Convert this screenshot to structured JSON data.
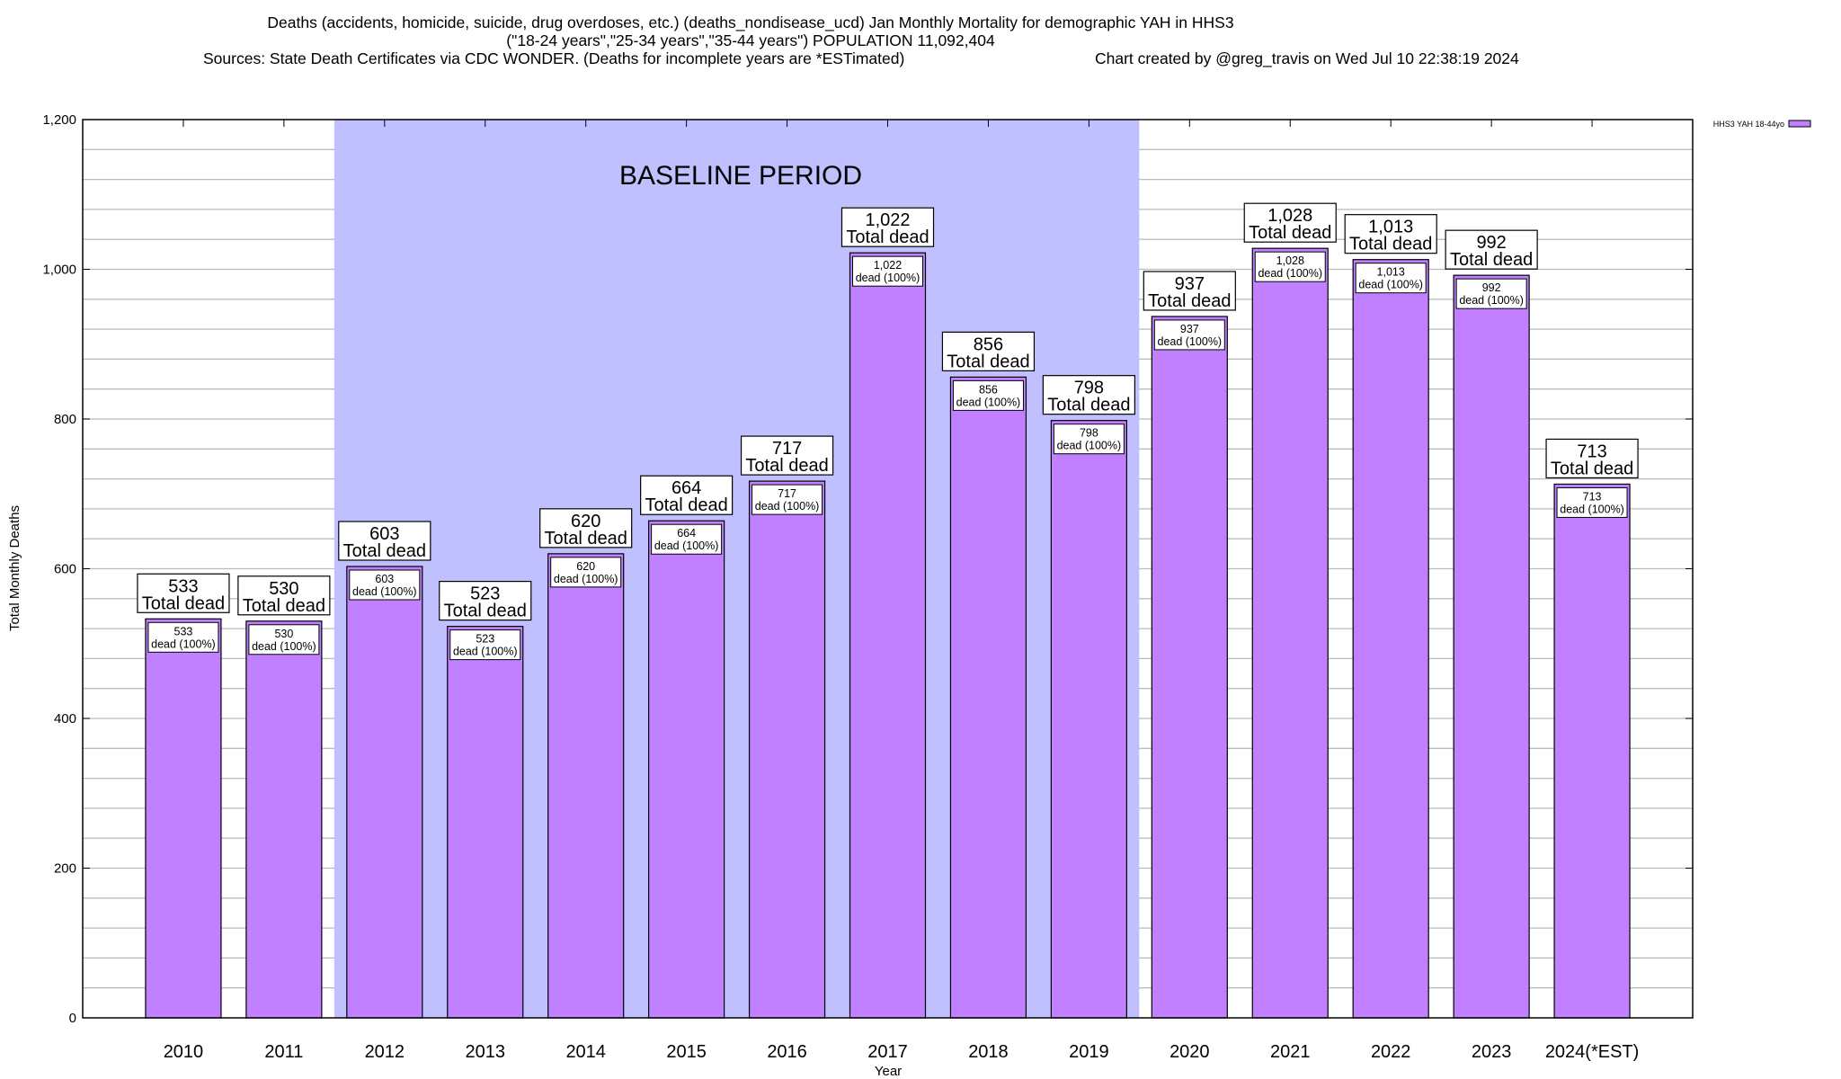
{
  "title": {
    "line1": "Deaths (accidents, homicide, suicide, drug overdoses, etc.) (deaths_nondisease_ucd) Jan Monthly Mortality for demographic YAH in HHS3",
    "line2": "(\"18-24 years\",\"25-34 years\",\"35-44 years\") POPULATION 11,092,404",
    "sources": "Sources: State Death Certificates via CDC WONDER. (Deaths for incomplete years are *ESTimated)",
    "credit": "Chart created by @greg_travis on Wed Jul 10 22:38:19 2024"
  },
  "chart_data": {
    "type": "bar",
    "xlabel": "Year",
    "ylabel": "Total Monthly Deaths",
    "ylim": [
      0,
      1200
    ],
    "yticks": [
      0,
      200,
      400,
      600,
      800,
      1000,
      1200
    ],
    "ytick_labels": [
      "0",
      "200",
      "400",
      "600",
      "800",
      "1,000",
      "1,200"
    ],
    "grid_step": 40,
    "grid": true,
    "categories": [
      "2010",
      "2011",
      "2012",
      "2013",
      "2014",
      "2015",
      "2016",
      "2017",
      "2018",
      "2019",
      "2020",
      "2021",
      "2022",
      "2023",
      "2024(*EST)"
    ],
    "series": [
      {
        "name": "HHS3 YAH 18-44yo",
        "color": "#c080ff",
        "values": [
          533,
          530,
          603,
          523,
          620,
          664,
          717,
          1022,
          856,
          798,
          937,
          1028,
          1013,
          992,
          713
        ]
      }
    ],
    "value_labels": [
      "533",
      "530",
      "603",
      "523",
      "620",
      "664",
      "717",
      "1,022",
      "856",
      "798",
      "937",
      "1,028",
      "1,013",
      "992",
      "713"
    ],
    "total_label_suffix": "Total dead",
    "inner_label_suffix": "dead (100%)",
    "baseline": {
      "label": "BASELINE PERIOD",
      "from": "2012",
      "to": "2019",
      "color": "#c0c0ff"
    },
    "legend": {
      "position": "top-right",
      "label": "HHS3 YAH 18-44yo"
    }
  }
}
